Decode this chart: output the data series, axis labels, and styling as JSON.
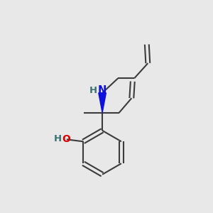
{
  "background_color": "#e8e8e8",
  "bond_color": "#3c3c3c",
  "nitrogen_color": "#1010dd",
  "oxygen_color": "#dd0000",
  "h_color": "#3a7070",
  "line_width": 1.5,
  "figsize": [
    3.0,
    3.0
  ],
  "dpi": 100,
  "xlim": [
    0,
    10
  ],
  "ylim": [
    0,
    10
  ]
}
